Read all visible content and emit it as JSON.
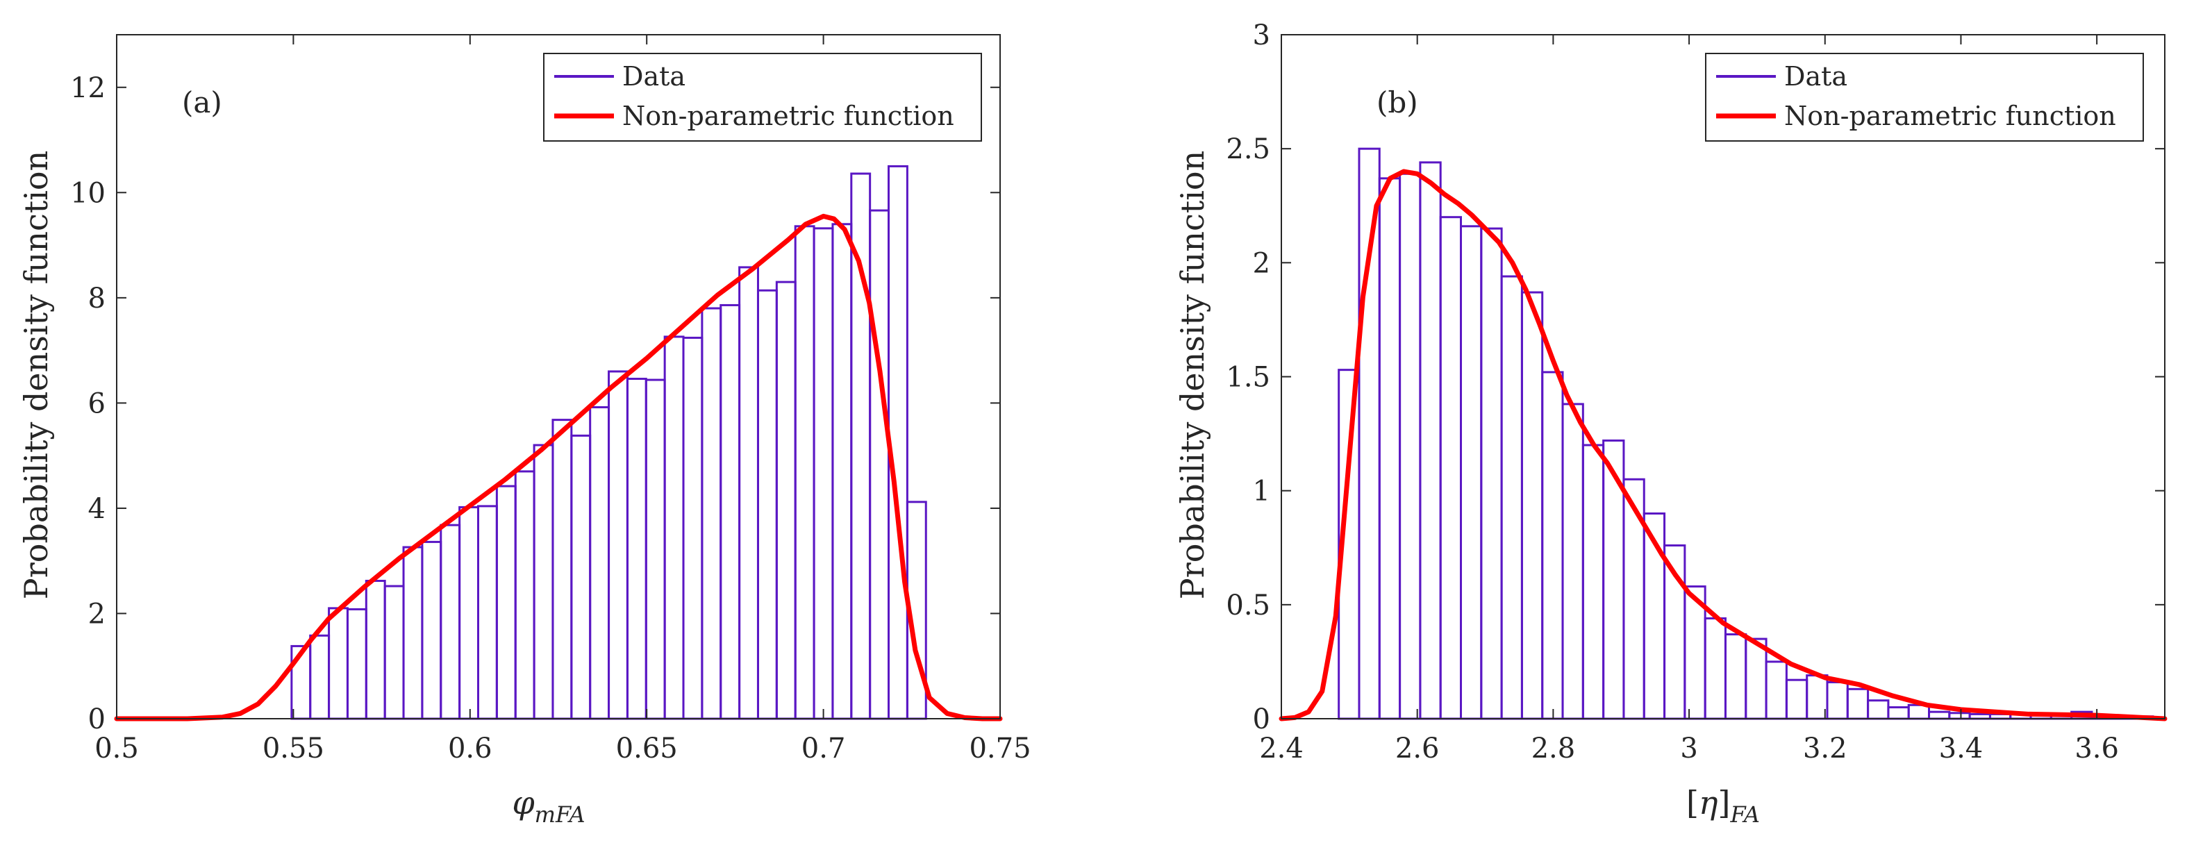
{
  "chart_data": [
    {
      "type": "bar",
      "panel_label": "(a)",
      "xlabel_base": "φ",
      "xlabel_sub": "mFA",
      "ylabel": "Probability density function",
      "xlim": [
        0.5,
        0.75
      ],
      "ylim": [
        0,
        13
      ],
      "x_ticks": [
        0.5,
        0.55,
        0.6,
        0.65,
        0.7,
        0.75
      ],
      "x_tick_labels": [
        "0.5",
        "0.55",
        "0.6",
        "0.65",
        "0.7",
        "0.75"
      ],
      "y_ticks": [
        0,
        2,
        4,
        6,
        8,
        10,
        12
      ],
      "y_tick_labels": [
        "0",
        "2",
        "4",
        "6",
        "8",
        "10",
        "12"
      ],
      "grid": false,
      "legend_position": "top-right",
      "series": [
        {
          "name": "Data",
          "kind": "histogram",
          "color": "#5a17c4",
          "bin_start": 0.5495,
          "bin_width": 0.00528,
          "values": [
            1.38,
            1.58,
            2.1,
            2.08,
            2.62,
            2.52,
            3.26,
            3.36,
            3.68,
            4.02,
            4.04,
            4.42,
            4.7,
            5.2,
            5.68,
            5.38,
            5.92,
            6.6,
            6.46,
            6.44,
            7.26,
            7.24,
            7.8,
            7.86,
            8.58,
            8.14,
            8.3,
            9.36,
            9.32,
            9.4,
            10.36,
            9.66,
            10.5,
            4.12
          ]
        },
        {
          "name": "Non-parametric function",
          "kind": "line",
          "color": "#ff0000",
          "x": [
            0.5,
            0.52,
            0.53,
            0.535,
            0.54,
            0.545,
            0.55,
            0.555,
            0.56,
            0.57,
            0.58,
            0.59,
            0.6,
            0.61,
            0.62,
            0.63,
            0.64,
            0.65,
            0.66,
            0.67,
            0.68,
            0.69,
            0.695,
            0.7,
            0.703,
            0.706,
            0.71,
            0.713,
            0.716,
            0.72,
            0.723,
            0.726,
            0.73,
            0.735,
            0.74,
            0.745,
            0.75
          ],
          "y": [
            0.0,
            0.0,
            0.03,
            0.1,
            0.28,
            0.62,
            1.05,
            1.5,
            1.9,
            2.5,
            3.05,
            3.55,
            4.05,
            4.55,
            5.1,
            5.7,
            6.3,
            6.85,
            7.45,
            8.05,
            8.55,
            9.1,
            9.4,
            9.55,
            9.5,
            9.3,
            8.7,
            7.9,
            6.6,
            4.5,
            2.6,
            1.3,
            0.4,
            0.1,
            0.02,
            0.0,
            0.0
          ]
        }
      ]
    },
    {
      "type": "bar",
      "panel_label": "(b)",
      "xlabel_base": "[η]",
      "xlabel_sub": "FA",
      "ylabel": "Probability density function",
      "xlim": [
        2.4,
        3.7
      ],
      "ylim": [
        0,
        3
      ],
      "x_ticks": [
        2.4,
        2.6,
        2.8,
        3.0,
        3.2,
        3.4,
        3.6
      ],
      "x_tick_labels": [
        "2.4",
        "2.6",
        "2.8",
        "3",
        "3.2",
        "3.4",
        "3.6"
      ],
      "y_ticks": [
        0,
        0.5,
        1,
        1.5,
        2,
        2.5,
        3
      ],
      "y_tick_labels": [
        "0",
        "0.5",
        "1",
        "1.5",
        "2",
        "2.5",
        "3"
      ],
      "grid": false,
      "legend_position": "top-right",
      "series": [
        {
          "name": "Data",
          "kind": "histogram",
          "color": "#5a17c4",
          "bin_start": 2.4845,
          "bin_width": 0.02995,
          "values": [
            1.53,
            2.5,
            2.37,
            2.39,
            2.44,
            2.2,
            2.16,
            2.15,
            1.94,
            1.87,
            1.52,
            1.38,
            1.2,
            1.22,
            1.05,
            0.9,
            0.76,
            0.58,
            0.44,
            0.37,
            0.35,
            0.25,
            0.17,
            0.19,
            0.16,
            0.13,
            0.08,
            0.05,
            0.06,
            0.03,
            0.025,
            0.02,
            0.02,
            0.02,
            0.02,
            0.015,
            0.03,
            0.015,
            0.01,
            0.01
          ]
        },
        {
          "name": "Non-parametric function",
          "kind": "line",
          "color": "#ff0000",
          "x": [
            2.4,
            2.42,
            2.44,
            2.46,
            2.48,
            2.5,
            2.52,
            2.54,
            2.56,
            2.58,
            2.6,
            2.62,
            2.64,
            2.66,
            2.68,
            2.7,
            2.72,
            2.74,
            2.76,
            2.78,
            2.8,
            2.82,
            2.84,
            2.86,
            2.88,
            2.9,
            2.92,
            2.94,
            2.96,
            2.98,
            3.0,
            3.05,
            3.1,
            3.15,
            3.2,
            3.25,
            3.3,
            3.35,
            3.4,
            3.5,
            3.6,
            3.7
          ],
          "y": [
            0.0,
            0.005,
            0.03,
            0.12,
            0.45,
            1.15,
            1.85,
            2.25,
            2.37,
            2.4,
            2.39,
            2.35,
            2.3,
            2.26,
            2.21,
            2.15,
            2.09,
            2.0,
            1.88,
            1.73,
            1.57,
            1.42,
            1.3,
            1.2,
            1.12,
            1.02,
            0.92,
            0.82,
            0.72,
            0.63,
            0.55,
            0.42,
            0.33,
            0.24,
            0.18,
            0.15,
            0.1,
            0.06,
            0.04,
            0.02,
            0.015,
            0.0
          ]
        }
      ]
    }
  ]
}
